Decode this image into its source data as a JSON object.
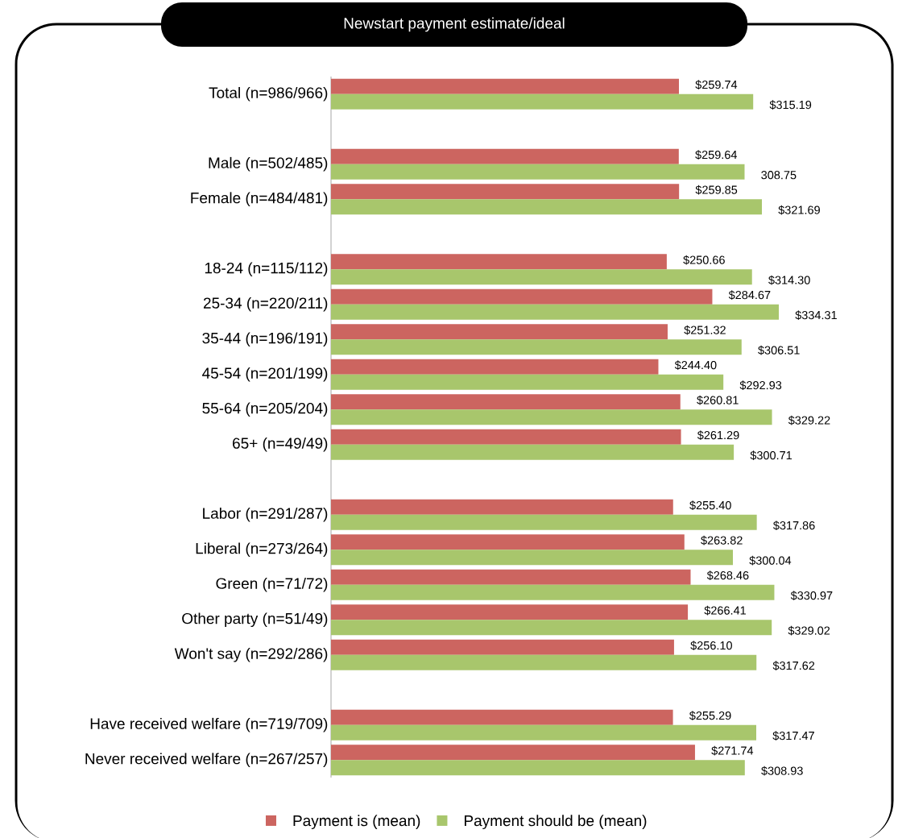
{
  "chart_data": {
    "type": "bar",
    "orientation": "horizontal",
    "title": "Newstart payment estimate/ideal",
    "categories": [
      "Total (n=986/966)",
      null,
      "Male (n=502/485)",
      "Female (n=484/481)",
      null,
      "18-24 (n=115/112)",
      "25-34 (n=220/211)",
      "35-44 (n=196/191)",
      "45-54 (n=201/199)",
      "55-64 (n=205/204)",
      "65+ (n=49/49)",
      null,
      "Labor (n=291/287)",
      "Liberal (n=273/264)",
      "Green (n=71/72)",
      "Other party (n=51/49)",
      "Won't say (n=292/286)",
      null,
      "Have received welfare (n=719/709)",
      "Never received welfare (n=267/257)"
    ],
    "series": [
      {
        "name": "Payment is (mean)",
        "color": "#cc6560",
        "values": [
          259.74,
          null,
          259.64,
          259.85,
          null,
          250.66,
          284.67,
          251.32,
          244.4,
          260.81,
          261.29,
          null,
          255.4,
          263.82,
          268.46,
          266.41,
          256.1,
          null,
          255.29,
          271.74
        ],
        "value_labels": [
          "$259.74",
          null,
          "$259.64",
          "$259.85",
          null,
          "$250.66",
          "$284.67",
          "$251.32",
          "$244.40",
          "$260.81",
          "$261.29",
          null,
          "$255.40",
          "$263.82",
          "$268.46",
          "$266.41",
          "$256.10",
          null,
          "$255.29",
          "$271.74"
        ]
      },
      {
        "name": "Payment should be (mean)",
        "color": "#a8c66c",
        "values": [
          315.19,
          null,
          308.75,
          321.69,
          null,
          314.3,
          334.31,
          306.51,
          292.93,
          329.22,
          300.71,
          null,
          317.86,
          300.04,
          330.97,
          329.02,
          317.62,
          null,
          317.47,
          308.93
        ],
        "value_labels": [
          "$315.19",
          null,
          "308.75",
          "$321.69",
          null,
          "$314.30",
          "$334.31",
          "$306.51",
          "$292.93",
          "$329.22",
          "$300.71",
          null,
          "$317.86",
          "$300.04",
          "$330.97",
          "$329.02",
          "$317.62",
          null,
          "$317.47",
          "$308.93"
        ]
      }
    ],
    "legend": "bottom"
  }
}
